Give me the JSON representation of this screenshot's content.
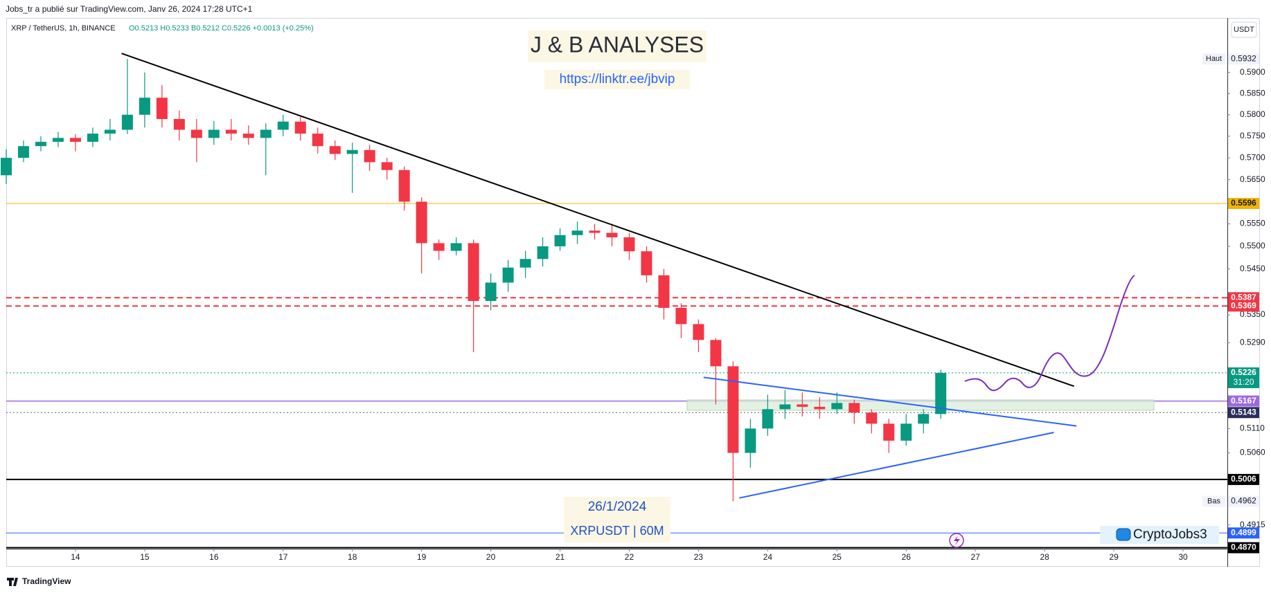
{
  "header": "Jobs_tr a publié sur TradingView.com, Janv 26, 2024 17:28 UTC+1",
  "symbol_line": "XRP / TetherUS, 1h, BINANCE",
  "ohlc_line": "O0.5213 H0.5233 B0.5212 C0.5226 +0.0013 (+0.25%)",
  "watermark_title": "J & B ANALYSES",
  "watermark_link": "https://linktr.ee/jbvip",
  "note_date": "26/1/2024",
  "note_symbol": "XRPUSDT | 60M",
  "author_badge": "CryptoJobs3",
  "footer_brand": "TradingView",
  "chart_data": {
    "type": "candlestick",
    "y_axis_unit": "USDT",
    "log": true,
    "grid": false,
    "up_color": "#089981",
    "down_color": "#f23645",
    "xlim": [
      13.0,
      30.64
    ],
    "ylim": [
      0.4868,
      0.6031
    ],
    "xticks": [
      14,
      15,
      16,
      17,
      18,
      19,
      20,
      21,
      22,
      23,
      24,
      25,
      26,
      27,
      28,
      29,
      30
    ],
    "yticks": [
      {
        "value": 0.59,
        "label": "0.5900"
      },
      {
        "value": 0.585,
        "label": "0.5850"
      },
      {
        "value": 0.58,
        "label": "0.5800"
      },
      {
        "value": 0.575,
        "label": "0.5750"
      },
      {
        "value": 0.57,
        "label": "0.5700"
      },
      {
        "value": 0.565,
        "label": "0.5650"
      },
      {
        "value": 0.555,
        "label": "0.5550"
      },
      {
        "value": 0.55,
        "label": "0.5500"
      },
      {
        "value": 0.545,
        "label": "0.5450"
      },
      {
        "value": 0.535,
        "label": "0.5350"
      },
      {
        "value": 0.529,
        "label": "0.5290"
      },
      {
        "value": 0.511,
        "label": "0.5110"
      },
      {
        "value": 0.506,
        "label": "0.5060"
      },
      0.4915
    ],
    "x": [
      13,
      13.25,
      13.5,
      13.75,
      14,
      14.25,
      14.5,
      14.75,
      15,
      15.25,
      15.5,
      15.75,
      16,
      16.25,
      16.5,
      16.75,
      17,
      17.25,
      17.5,
      17.75,
      18,
      18.25,
      18.5,
      18.75,
      19,
      19.25,
      19.5,
      19.75,
      20,
      20.25,
      20.5,
      20.75,
      21,
      21.25,
      21.5,
      21.75,
      22,
      22.25,
      22.5,
      22.75,
      23,
      23.25,
      23.5,
      23.75,
      24,
      24.25,
      24.5,
      24.75,
      25,
      25.25,
      25.5,
      25.75,
      26,
      26.25,
      26.5
    ],
    "open": [
      0.566,
      0.57,
      0.5727,
      0.5737,
      0.5746,
      0.5737,
      0.5756,
      0.5765,
      0.58,
      0.584,
      0.579,
      0.5765,
      0.5746,
      0.5765,
      0.5756,
      0.5746,
      0.5765,
      0.5784,
      0.5756,
      0.5727,
      0.5709,
      0.5718,
      0.569,
      0.5672,
      0.56,
      0.5507,
      0.549,
      0.5507,
      0.538,
      0.542,
      0.5453,
      0.5472,
      0.55,
      0.5525,
      0.5535,
      0.553,
      0.552,
      0.5489,
      0.5436,
      0.5365,
      0.533,
      0.5296,
      0.524,
      0.506,
      0.511,
      0.515,
      0.516,
      0.5155,
      0.515,
      0.5163,
      0.5143,
      0.512,
      0.5085,
      0.512,
      0.514
    ],
    "high": [
      0.572,
      0.574,
      0.575,
      0.576,
      0.5755,
      0.577,
      0.579,
      0.5932,
      0.59,
      0.587,
      0.581,
      0.579,
      0.5785,
      0.579,
      0.5775,
      0.578,
      0.58,
      0.5795,
      0.577,
      0.574,
      0.5735,
      0.573,
      0.57,
      0.568,
      0.561,
      0.5515,
      0.552,
      0.5515,
      0.544,
      0.547,
      0.549,
      0.552,
      0.554,
      0.5555,
      0.555,
      0.555,
      0.553,
      0.55,
      0.545,
      0.5375,
      0.534,
      0.53,
      0.525,
      0.513,
      0.518,
      0.519,
      0.5185,
      0.5175,
      0.5185,
      0.517,
      0.515,
      0.513,
      0.514,
      0.515,
      0.5233
    ],
    "low": [
      0.564,
      0.569,
      0.5715,
      0.5725,
      0.5715,
      0.5725,
      0.574,
      0.5755,
      0.577,
      0.577,
      0.574,
      0.569,
      0.573,
      0.574,
      0.573,
      0.566,
      0.575,
      0.574,
      0.571,
      0.5695,
      0.562,
      0.567,
      0.565,
      0.558,
      0.544,
      0.547,
      0.548,
      0.527,
      0.536,
      0.54,
      0.543,
      0.5455,
      0.549,
      0.5505,
      0.5515,
      0.55,
      0.547,
      0.542,
      0.534,
      0.53,
      0.527,
      0.516,
      0.4962,
      0.503,
      0.5095,
      0.513,
      0.5135,
      0.513,
      0.514,
      0.512,
      0.51,
      0.506,
      0.5075,
      0.51,
      0.513
    ],
    "close": [
      0.57,
      0.5727,
      0.5737,
      0.5746,
      0.5737,
      0.5756,
      0.5765,
      0.58,
      0.584,
      0.579,
      0.5765,
      0.5746,
      0.5765,
      0.5756,
      0.5746,
      0.5765,
      0.5784,
      0.5756,
      0.5727,
      0.5709,
      0.5718,
      0.569,
      0.5672,
      0.56,
      0.5507,
      0.549,
      0.5507,
      0.538,
      0.542,
      0.5453,
      0.5472,
      0.55,
      0.5525,
      0.5535,
      0.553,
      0.552,
      0.5489,
      0.5436,
      0.5365,
      0.533,
      0.5296,
      0.524,
      0.506,
      0.511,
      0.515,
      0.516,
      0.5155,
      0.515,
      0.5163,
      0.5143,
      0.512,
      0.5085,
      0.512,
      0.514,
      0.5226
    ],
    "price_lines": [
      {
        "value": 0.5596,
        "color": "#f0b400",
        "style": "solid",
        "width": 1
      },
      {
        "value": 0.5387,
        "color": "#f23645",
        "style": "dashed",
        "width": 2
      },
      {
        "value": 0.5369,
        "color": "#f23645",
        "style": "dashed",
        "width": 2
      },
      {
        "value": 0.5226,
        "color": "#089981",
        "style": "dotted",
        "width": 1
      },
      {
        "value": 0.5167,
        "color": "#9c6ade",
        "style": "solid",
        "width": 1.5
      },
      {
        "value": 0.5143,
        "color": "#5d606b",
        "style": "dotted",
        "width": 1,
        "label_color": "#2a2e5a"
      },
      {
        "value": 0.5006,
        "color": "#000000",
        "style": "solid",
        "width": 2
      },
      {
        "value": 0.4899,
        "color": "#2962ff",
        "style": "solid",
        "width": 1
      },
      {
        "value": 0.487,
        "label": "0.4870",
        "color": "#000000",
        "style": "solid",
        "width": 2
      }
    ],
    "countdown": "31:20",
    "high_marker": {
      "label": "Haut",
      "value": 0.5932
    },
    "low_marker": {
      "label": "Bas",
      "value": 0.4962
    }
  }
}
